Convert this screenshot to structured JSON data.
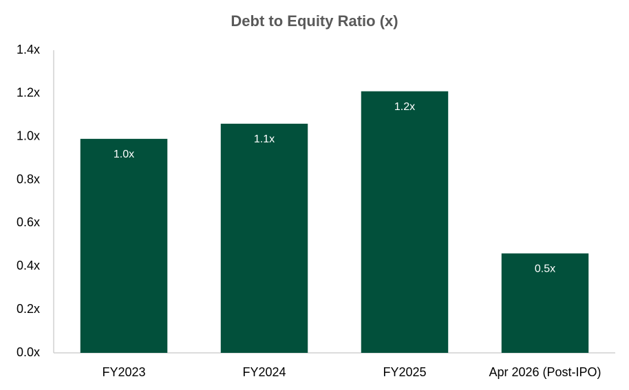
{
  "chart_data": {
    "type": "bar",
    "title": "Debt to Equity Ratio (x)",
    "categories": [
      "FY2023",
      "FY2024",
      "FY2025",
      "Apr 2026 (Post-IPO)"
    ],
    "values": [
      0.99,
      1.06,
      1.21,
      0.46
    ],
    "value_labels": [
      "1.0x",
      "1.1x",
      "1.2x",
      "0.5x"
    ],
    "color": "#02503b",
    "ylim": [
      0,
      1.4
    ],
    "yticks": [
      {
        "value": 0,
        "label": "0.0x"
      },
      {
        "value": 0.2,
        "label": "0.2x"
      },
      {
        "value": 0.4,
        "label": "0.4x"
      },
      {
        "value": 0.6,
        "label": "0.6x"
      },
      {
        "value": 0.8,
        "label": "0.8x"
      },
      {
        "value": 1.0,
        "label": "1.0x"
      },
      {
        "value": 1.2,
        "label": "1.2x"
      },
      {
        "value": 1.4,
        "label": "1.4x"
      }
    ],
    "grid": false
  }
}
